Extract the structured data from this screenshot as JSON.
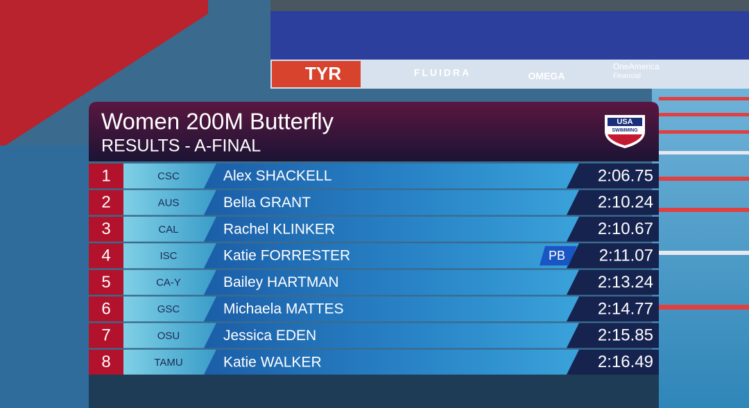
{
  "header": {
    "title": "Women 200M Butterfly",
    "subtitle": "RESULTS - A-FINAL"
  },
  "logo": {
    "line1": "USA",
    "line2": "SWIMMING"
  },
  "background": {
    "sponsors": [
      "TYR",
      "FLUIDRA",
      "OMEGA",
      "OneAmerica",
      "Financial"
    ]
  },
  "results": [
    {
      "place": 1,
      "team": "CSC",
      "name": "Alex SHACKELL",
      "time": "2:06.75"
    },
    {
      "place": 2,
      "team": "AUS",
      "name": "Bella GRANT",
      "time": "2:10.24"
    },
    {
      "place": 3,
      "team": "CAL",
      "name": "Rachel KLINKER",
      "time": "2:10.67"
    },
    {
      "place": 4,
      "team": "ISC",
      "name": "Katie FORRESTER",
      "badge": "PB",
      "time": "2:11.07"
    },
    {
      "place": 5,
      "team": "CA-Y",
      "name": "Bailey HARTMAN",
      "time": "2:13.24"
    },
    {
      "place": 6,
      "team": "GSC",
      "name": "Michaela MATTES",
      "time": "2:14.77"
    },
    {
      "place": 7,
      "team": "OSU",
      "name": "Jessica EDEN",
      "time": "2:15.85"
    },
    {
      "place": 8,
      "team": "TAMU",
      "name": "Katie WALKER",
      "time": "2:16.49"
    }
  ]
}
